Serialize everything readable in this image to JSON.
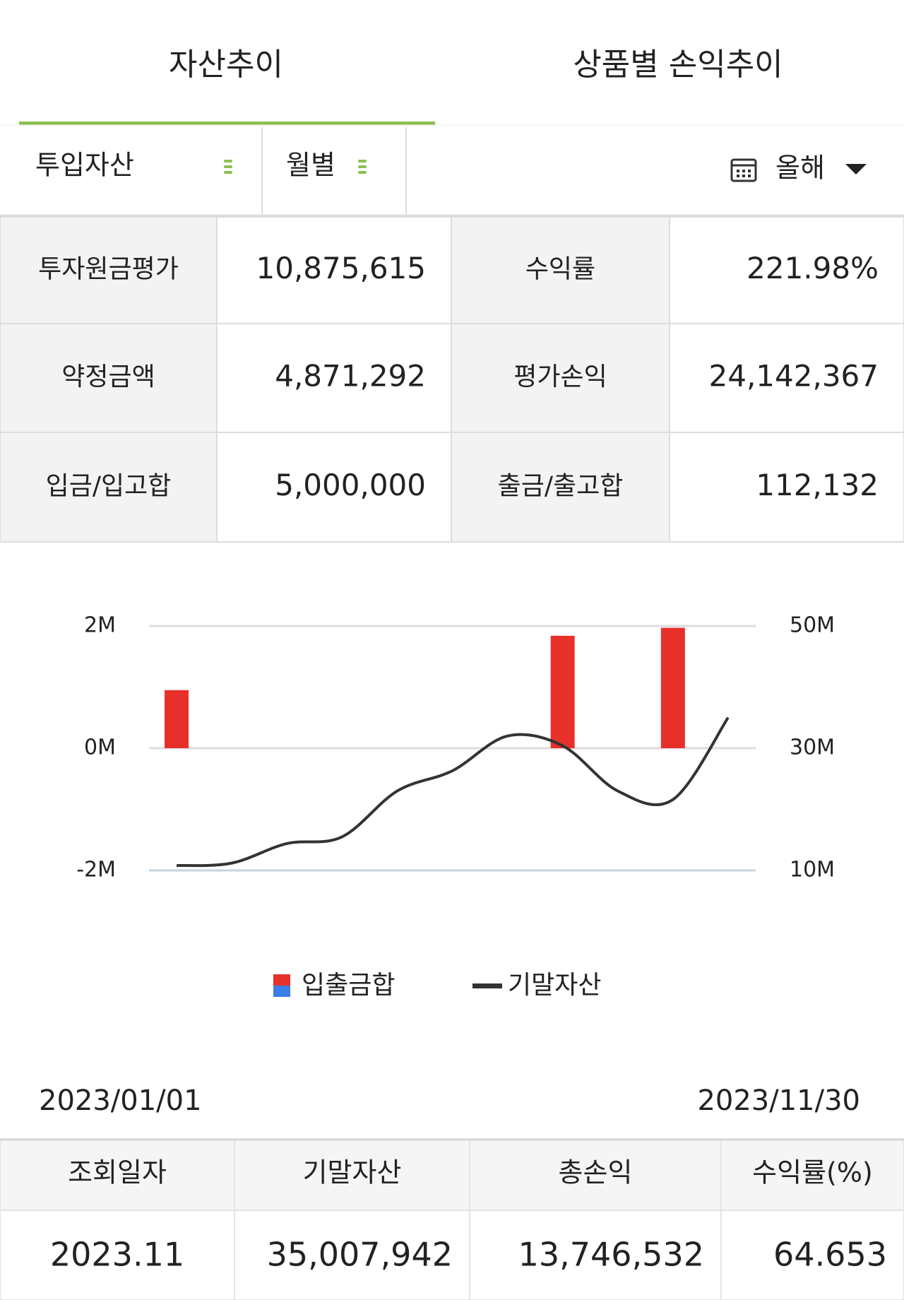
{
  "tabs": {
    "items": [
      "자산추이",
      "상품별 손익추이"
    ],
    "active": 0
  },
  "filters": {
    "items": [
      "투입자산",
      "월별"
    ],
    "period": "올해"
  },
  "summary": [
    [
      {
        "label": "투자원금평가",
        "value": "10,875,615"
      },
      {
        "label": "수익률",
        "value": "221.98%",
        "value_color": "#d03a35"
      }
    ],
    [
      {
        "label": "약정금액",
        "value": "4,871,292"
      },
      {
        "label": "평가손익",
        "value": "24,142,367",
        "value_color": "#d03a35"
      }
    ],
    [
      {
        "label": "입금/입고합",
        "value": "5,000,000"
      },
      {
        "label": "출금/출고합",
        "value": "112,132"
      }
    ]
  ],
  "chart_data": {
    "type": "combo",
    "categories": [
      null,
      null,
      null,
      null,
      null,
      null,
      null,
      null,
      null,
      null,
      null
    ],
    "series": [
      {
        "name": "입출금합",
        "type": "bar",
        "color": "#e8302a",
        "negative_color": "#3a7de8",
        "values": [
          950000,
          0,
          0,
          0,
          0,
          0,
          0,
          1840000,
          0,
          1970000,
          0
        ]
      },
      {
        "name": "기말자산",
        "type": "line",
        "axis": "y2",
        "color": "#333333",
        "values": [
          10800000,
          11200000,
          14400000,
          15500000,
          23000000,
          26300000,
          32000000,
          30400000,
          23000000,
          21600000,
          35007942
        ]
      }
    ],
    "ylim": [
      -2000000,
      2000000
    ],
    "yticks": [
      {
        "value": -2000000,
        "label": "-2M"
      },
      {
        "value": 0,
        "label": "0M"
      },
      {
        "value": 2000000,
        "label": "2M"
      }
    ],
    "y2lim": [
      10000000,
      50000000
    ],
    "y2ticks": [
      {
        "value": 10000000,
        "label": "10M"
      },
      {
        "value": 30000000,
        "label": "30M"
      },
      {
        "value": 50000000,
        "label": "50M"
      }
    ],
    "grid": true
  },
  "range": {
    "start": "2023/01/01",
    "end": "2023/11/30"
  },
  "table": {
    "header": [
      "조회일자",
      "기말자산",
      "총손익",
      "수익률(%)"
    ],
    "rows": [
      [
        "2023.11",
        "35,007,942",
        "13,746,532",
        "64.653"
      ]
    ],
    "column_colors": [
      "#222222",
      "#222222",
      "#d03a35",
      "#d03a35"
    ]
  }
}
